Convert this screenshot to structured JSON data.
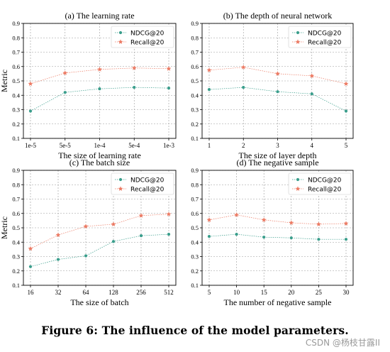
{
  "figure": {
    "caption": "Figure 6: The influence of the model parameters.",
    "watermark": "CSDN @杨枝甘露II"
  },
  "colors": {
    "ndcg": "#3a9e8c",
    "recall": "#ec7a63",
    "grid": "#9a9a9a"
  },
  "chart_data": [
    {
      "type": "line",
      "title": "(a) The learning rate",
      "xlabel": "The size of learning rate",
      "ylabel": "Metric",
      "categories": [
        "1e-5",
        "5e-5",
        "1e-4",
        "5e-4",
        "1e-3"
      ],
      "ylim": [
        0.1,
        0.9
      ],
      "yticks": [
        "0.1",
        "0.2",
        "0.3",
        "0.4",
        "0.5",
        "0.6",
        "0.7",
        "0.8",
        "0.9"
      ],
      "grid": true,
      "legend_position": "top-right",
      "series": [
        {
          "name": "NDCG@20",
          "values": [
            0.29,
            0.42,
            0.445,
            0.455,
            0.45
          ]
        },
        {
          "name": "Recall@20",
          "values": [
            0.48,
            0.555,
            0.58,
            0.59,
            0.585
          ]
        }
      ]
    },
    {
      "type": "line",
      "title": "(b) The depth of neural network",
      "xlabel": "The size of layer depth",
      "ylabel": "",
      "categories": [
        "1",
        "2",
        "3",
        "4",
        "5"
      ],
      "ylim": [
        0.1,
        0.9
      ],
      "yticks": [
        "0.1",
        "0.2",
        "0.3",
        "0.4",
        "0.5",
        "0.6",
        "0.7",
        "0.8",
        "0.9"
      ],
      "grid": true,
      "legend_position": "top-right",
      "series": [
        {
          "name": "NDCG@20",
          "values": [
            0.44,
            0.455,
            0.425,
            0.41,
            0.29
          ]
        },
        {
          "name": "Recall@20",
          "values": [
            0.575,
            0.595,
            0.55,
            0.535,
            0.48
          ]
        }
      ]
    },
    {
      "type": "line",
      "title": "(c) The batch size",
      "xlabel": "The size of batch",
      "ylabel": "Metric",
      "categories": [
        "16",
        "32",
        "64",
        "128",
        "256",
        "512"
      ],
      "ylim": [
        0.1,
        0.9
      ],
      "yticks": [
        "0.1",
        "0.2",
        "0.3",
        "0.4",
        "0.5",
        "0.6",
        "0.7",
        "0.8",
        "0.9"
      ],
      "grid": true,
      "legend_position": "top-right",
      "series": [
        {
          "name": "NDCG@20",
          "values": [
            0.23,
            0.28,
            0.305,
            0.405,
            0.445,
            0.455
          ]
        },
        {
          "name": "Recall@20",
          "values": [
            0.355,
            0.45,
            0.51,
            0.525,
            0.585,
            0.595
          ]
        }
      ]
    },
    {
      "type": "line",
      "title": "(d) The negative sample",
      "xlabel": "The number of negative sample",
      "ylabel": "",
      "categories": [
        "5",
        "10",
        "15",
        "20",
        "25",
        "30"
      ],
      "ylim": [
        0.1,
        0.9
      ],
      "yticks": [
        "0.1",
        "0.2",
        "0.3",
        "0.4",
        "0.5",
        "0.6",
        "0.7",
        "0.8",
        "0.9"
      ],
      "grid": true,
      "legend_position": "top-right",
      "series": [
        {
          "name": "NDCG@20",
          "values": [
            0.44,
            0.455,
            0.435,
            0.43,
            0.42,
            0.42
          ]
        },
        {
          "name": "Recall@20",
          "values": [
            0.555,
            0.59,
            0.555,
            0.535,
            0.525,
            0.53
          ]
        }
      ]
    }
  ]
}
